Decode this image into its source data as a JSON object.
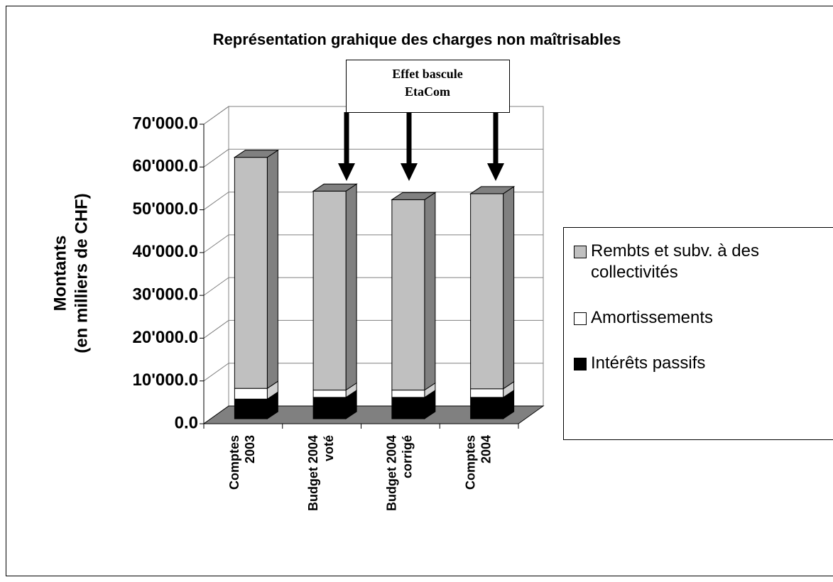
{
  "chart_data": {
    "type": "bar3d_stacked",
    "title": "Représentation grahique des charges non maîtrisables",
    "y_label": [
      "Montants",
      "(en milliers de CHF)"
    ],
    "annotation": [
      "Effet bascule",
      "EtaCom"
    ],
    "categories": [
      [
        "Comptes",
        "2003"
      ],
      [
        "Budget 2004",
        "voté"
      ],
      [
        "Budget 2004",
        "corrigé"
      ],
      [
        "Comptes",
        "2004"
      ]
    ],
    "series": [
      {
        "name": "Intérêts passifs",
        "color": "#000000",
        "side_color": "#000000",
        "values": [
          4600,
          5000,
          5000,
          5000
        ]
      },
      {
        "name": "Amortissements",
        "color": "#ffffff",
        "side_color": "#d0d0d0",
        "values": [
          2500,
          1700,
          1700,
          2000
        ]
      },
      {
        "name": "Rembts et subv. à des collectivités",
        "color": "#c0c0c0",
        "side_color": "#808080",
        "values": [
          54000,
          46500,
          44500,
          45600
        ]
      }
    ],
    "ylim": [
      0,
      70000
    ],
    "yticks": [
      {
        "value": 0,
        "label": "0.0"
      },
      {
        "value": 10000,
        "label": "10'000.0"
      },
      {
        "value": 20000,
        "label": "20'000.0"
      },
      {
        "value": 30000,
        "label": "30'000.0"
      },
      {
        "value": 40000,
        "label": "40'000.0"
      },
      {
        "value": 50000,
        "label": "50'000.0"
      },
      {
        "value": 60000,
        "label": "60'000.0"
      },
      {
        "value": 70000,
        "label": "70'000.0"
      }
    ],
    "grid": true
  }
}
